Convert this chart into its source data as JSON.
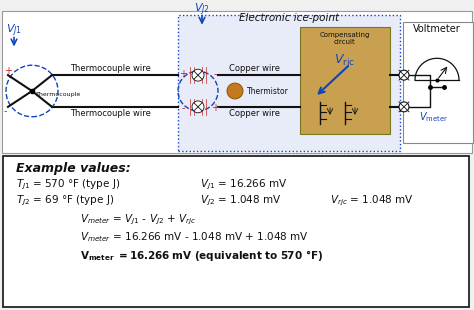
{
  "bg_color": "#f0f0f0",
  "upper_bg": "#ffffff",
  "ice_bg": "#e8ecf8",
  "blue": "#1144bb",
  "red": "#cc2222",
  "black": "#111111",
  "comp_color": "#c8a050",
  "gray": "#888888",
  "title": "Electronic ice-point",
  "voltmeter": "Voltmeter",
  "tc_wire_top": "Thermocouple wire",
  "tc_wire_bot": "Thermocouple wire",
  "cu_wire_top": "Copper wire",
  "cu_wire_bot": "Copper wire",
  "thermistor": "Thermistor",
  "comp_circuit": "Compensating\ncircuit",
  "thermocouple": "Thermocouple",
  "ex_title": "Example values:",
  "line1_t": "T",
  "line1_tsub": "J1",
  "line1_tval": " = 570 °F (type J)",
  "line1_v": "V",
  "line1_vsub": "J1",
  "line1_vval": " = 16.266 mV",
  "line2_t": "T",
  "line2_tsub": "J2",
  "line2_tval": " = 69 °F (type J)",
  "line2_v": "V",
  "line2_vsub": "J2",
  "line2_vval": " = 1.048 mV",
  "line2_vr": "V",
  "line2_vrsub": "rjc",
  "line2_vrval": " = 1.048 mV",
  "eq1": "V_{meter} = V_{J1} - V_{J2} + V_{rjc}",
  "eq2": "V_{meter} = 16.266 mV - 1.048 mV + 1.048 mV",
  "eq3": "V_{meter} = 16.266 mV (equivalent to 570 °F)"
}
